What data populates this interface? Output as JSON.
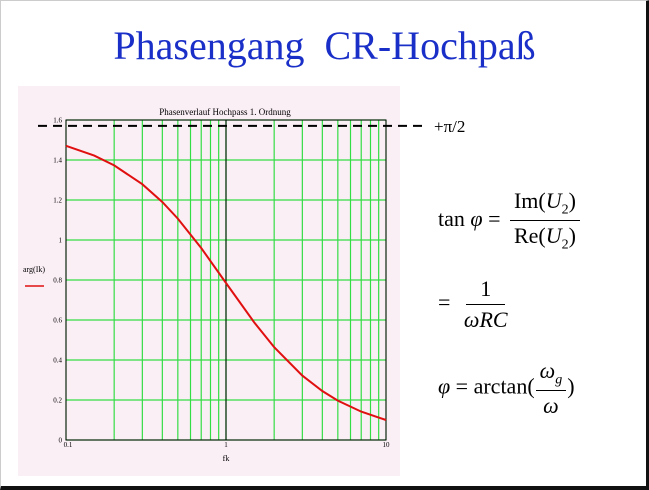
{
  "slide": {
    "title": "Phasengang  CR-Hochpaß"
  },
  "chart_data": {
    "type": "line",
    "title": "Phasenverlauf Hochpass 1. Ordnung",
    "xscale": "log",
    "xlim": [
      0.1,
      10
    ],
    "ylim": [
      0,
      1.6
    ],
    "x_ticks": [
      "0.1",
      "1",
      "10"
    ],
    "y_ticks": [
      "0",
      "0.2",
      "0.4",
      "0.6",
      "0.8",
      "1",
      "1.2",
      "1.4",
      "1.6"
    ],
    "ylabel": "arg(Ik)",
    "xlabel": "fk",
    "grid": true,
    "reference_line": {
      "label": "+π/2",
      "y": 1.5708
    },
    "series": [
      {
        "x": [
          0.1,
          0.15,
          0.2,
          0.3,
          0.4,
          0.5,
          0.7,
          1,
          1.5,
          2,
          3,
          4,
          5,
          7,
          10
        ],
        "y": [
          1.471,
          1.422,
          1.373,
          1.279,
          1.19,
          1.107,
          0.96,
          0.785,
          0.588,
          0.464,
          0.322,
          0.245,
          0.197,
          0.142,
          0.1
        ]
      }
    ],
    "colors": {
      "curve": "#e01010",
      "grid": "#33dd44",
      "axis": "#000000"
    }
  },
  "formulas": {
    "f1": {
      "lhs_fn": "tan",
      "lhs_var": "φ",
      "eq": "=",
      "num_fn": "Im(",
      "num_var": "U",
      "num_sub": "2",
      "num_close": ")",
      "den_fn": "Re(",
      "den_var": "U",
      "den_sub": "2",
      "den_close": ")"
    },
    "f2": {
      "eq": "=",
      "num": "1",
      "den": "ωRC"
    },
    "f3": {
      "lhs_var": "φ",
      "eq": "=",
      "fn": "arctan(",
      "num_var": "ω",
      "num_sub": "g",
      "den_var": "ω",
      "close": ")"
    }
  }
}
